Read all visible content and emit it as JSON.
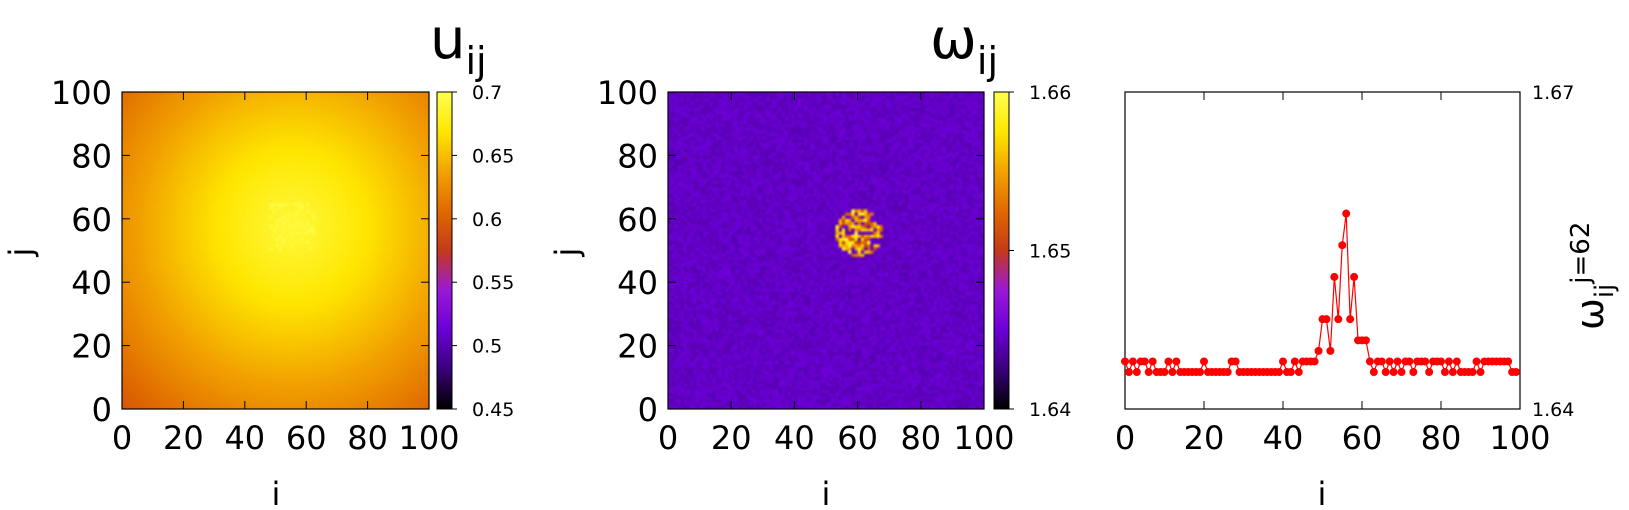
{
  "colors": {
    "line_series": "#ff0000",
    "heatmap_palette": [
      "#000000",
      "#3a007a",
      "#6c00d8",
      "#9b19d6",
      "#c43a1a",
      "#e06a00",
      "#f2a200",
      "#ffe600",
      "#ffff50"
    ]
  },
  "chart_data": [
    {
      "type": "heatmap",
      "title": "u",
      "title_sub": "ij",
      "xlabel": "i",
      "ylabel": "j",
      "xlim": [
        0,
        100
      ],
      "ylim": [
        0,
        100
      ],
      "x_ticks": [
        "0",
        "20",
        "40",
        "60",
        "80",
        "100"
      ],
      "y_ticks": [
        "0",
        "20",
        "40",
        "60",
        "80",
        "100"
      ],
      "colorbar": {
        "range": [
          0.45,
          0.7
        ],
        "ticks": [
          "0.45",
          "0.5",
          "0.55",
          "0.6",
          "0.65",
          "0.7"
        ]
      },
      "field": {
        "description_values": {
          "corner_min": 0.595,
          "peak": 0.69,
          "peak_center_i": 55,
          "peak_center_j": 57
        }
      }
    },
    {
      "type": "heatmap",
      "title": "ω",
      "title_sub": "ij",
      "xlabel": "i",
      "ylabel": "j",
      "xlim": [
        0,
        100
      ],
      "ylim": [
        0,
        100
      ],
      "x_ticks": [
        "0",
        "20",
        "40",
        "60",
        "80",
        "100"
      ],
      "y_ticks": [
        "0",
        "20",
        "40",
        "60",
        "80",
        "100"
      ],
      "colorbar": {
        "range": [
          1.64,
          1.66
        ],
        "ticks": [
          "1.64",
          "1.65",
          "1.66"
        ]
      },
      "field": {
        "background": 1.6445,
        "cluster_center_i": 60,
        "cluster_center_j": 55,
        "cluster_peak": 1.66
      }
    },
    {
      "type": "line",
      "title": "",
      "xlabel": "i",
      "ylabel": "ω",
      "ylabel_sub": "ij",
      "ylabel_sup": "j=62",
      "xlim": [
        0,
        100
      ],
      "ylim": [
        1.64,
        1.67
      ],
      "x_ticks": [
        "0",
        "20",
        "40",
        "60",
        "80",
        "100"
      ],
      "y_ticks": [
        "1.64",
        "1.67"
      ],
      "series": [
        {
          "x": [
            0,
            1,
            2,
            3,
            4,
            5,
            6,
            7,
            8,
            9,
            10,
            11,
            12,
            13,
            14,
            15,
            16,
            17,
            18,
            19,
            20,
            21,
            22,
            23,
            24,
            25,
            26,
            27,
            28,
            29,
            30,
            31,
            32,
            33,
            34,
            35,
            36,
            37,
            38,
            39,
            40,
            41,
            42,
            43,
            44,
            45,
            46,
            47,
            48,
            49,
            50,
            51,
            52,
            53,
            54,
            55,
            56,
            57,
            58,
            59,
            60,
            61,
            62,
            63,
            64,
            65,
            66,
            67,
            68,
            69,
            70,
            71,
            72,
            73,
            74,
            75,
            76,
            77,
            78,
            79,
            80,
            81,
            82,
            83,
            84,
            85,
            86,
            87,
            88,
            89,
            90,
            91,
            92,
            93,
            94,
            95,
            96,
            97,
            98,
            99
          ],
          "values": [
            1.6445,
            1.6435,
            1.6445,
            1.6435,
            1.6445,
            1.6445,
            1.6435,
            1.6445,
            1.6435,
            1.6435,
            1.6435,
            1.6445,
            1.6435,
            1.6445,
            1.6435,
            1.6435,
            1.6435,
            1.6435,
            1.6435,
            1.6435,
            1.6445,
            1.6435,
            1.6435,
            1.6435,
            1.6435,
            1.6435,
            1.6435,
            1.6445,
            1.6445,
            1.6435,
            1.6435,
            1.6435,
            1.6435,
            1.6435,
            1.6435,
            1.6435,
            1.6435,
            1.6435,
            1.6435,
            1.6435,
            1.6445,
            1.6435,
            1.6435,
            1.6445,
            1.6435,
            1.6445,
            1.6445,
            1.6445,
            1.6445,
            1.6455,
            1.6485,
            1.6485,
            1.6455,
            1.6525,
            1.6485,
            1.6555,
            1.6585,
            1.6485,
            1.6525,
            1.6465,
            1.6465,
            1.6465,
            1.6445,
            1.6435,
            1.6445,
            1.6445,
            1.6435,
            1.6445,
            1.6435,
            1.6445,
            1.6435,
            1.6445,
            1.6445,
            1.6435,
            1.6445,
            1.6445,
            1.6445,
            1.6435,
            1.6445,
            1.6445,
            1.6445,
            1.6435,
            1.6445,
            1.6435,
            1.6445,
            1.6435,
            1.6435,
            1.6435,
            1.6435,
            1.6445,
            1.6435,
            1.6445,
            1.6445,
            1.6445,
            1.6445,
            1.6445,
            1.6445,
            1.6445,
            1.6435,
            1.6435
          ]
        }
      ]
    }
  ]
}
